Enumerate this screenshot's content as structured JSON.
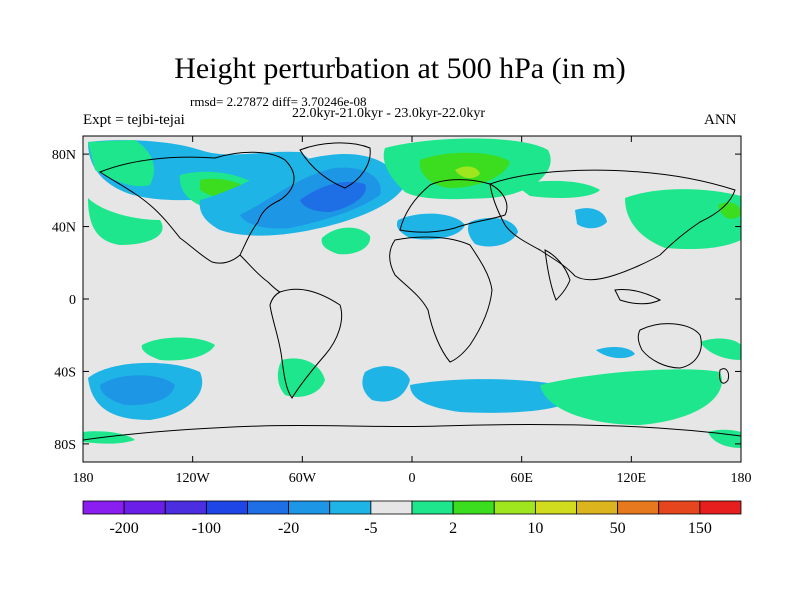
{
  "title": "Height perturbation at 500 hPa (in m)",
  "stats_line": "rmsd= 2.27872 diff= 3.70246e-08",
  "period_line": "22.0kyr-21.0kyr - 23.0kyr-22.0kyr",
  "left_label": "Expt = tejbi-tejai",
  "right_label": "ANN",
  "map": {
    "background": "#e6e6e6",
    "lat_ticks": [
      "80N",
      "40N",
      "0",
      "40S",
      "80S"
    ],
    "lon_ticks": [
      "180",
      "120W",
      "60W",
      "0",
      "60E",
      "120E",
      "180"
    ]
  },
  "colorbar": {
    "colors": [
      "#8a1df0",
      "#6a1ee8",
      "#4b2ee0",
      "#1e46e6",
      "#1e6ee6",
      "#1e96e6",
      "#1eb4e6",
      "#e6e6e6",
      "#1ee68c",
      "#3cdc1e",
      "#a0e61e",
      "#d2dc1e",
      "#dcb41e",
      "#e6781e",
      "#e6461e",
      "#e61e1e"
    ],
    "labels": [
      "-200",
      "-100",
      "-20",
      "-5",
      "2",
      "10",
      "50",
      "150"
    ]
  }
}
